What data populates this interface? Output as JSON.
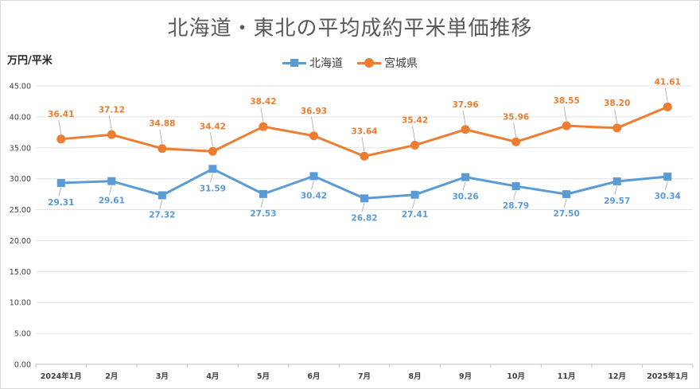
{
  "chart_data": {
    "type": "line",
    "title": "北海道・東北の平均成約平米単価推移",
    "ylabel": "万円/平米",
    "xlabel": "",
    "categories": [
      "2024年1月",
      "2月",
      "3月",
      "4月",
      "5月",
      "6月",
      "7月",
      "8月",
      "9月",
      "10月",
      "11月",
      "12月",
      "2025年1月"
    ],
    "ylim": [
      0,
      45
    ],
    "yticks": [
      "0.00",
      "5.00",
      "10.00",
      "15.00",
      "20.00",
      "25.00",
      "30.00",
      "35.00",
      "40.00",
      "45.00"
    ],
    "grid": true,
    "legend_position": "top",
    "series": [
      {
        "name": "北海道",
        "color": "#5b9bd5",
        "marker": "square",
        "values": [
          29.31,
          29.61,
          27.32,
          31.59,
          27.53,
          30.42,
          26.82,
          27.41,
          30.26,
          28.79,
          27.5,
          29.57,
          30.34
        ],
        "labels": [
          "29.31",
          "29.61",
          "27.32",
          "31.59",
          "27.53",
          "30.42",
          "26.82",
          "27.41",
          "30.26",
          "28.79",
          "27.50",
          "29.57",
          "30.34"
        ]
      },
      {
        "name": "宮城県",
        "color": "#ed7d31",
        "marker": "circle",
        "values": [
          36.41,
          37.12,
          34.88,
          34.42,
          38.42,
          36.93,
          33.64,
          35.42,
          37.96,
          35.96,
          38.55,
          38.2,
          41.61
        ],
        "labels": [
          "36.41",
          "37.12",
          "34.88",
          "34.42",
          "38.42",
          "36.93",
          "33.64",
          "35.42",
          "37.96",
          "35.96",
          "38.55",
          "38.20",
          "41.61"
        ]
      }
    ]
  }
}
